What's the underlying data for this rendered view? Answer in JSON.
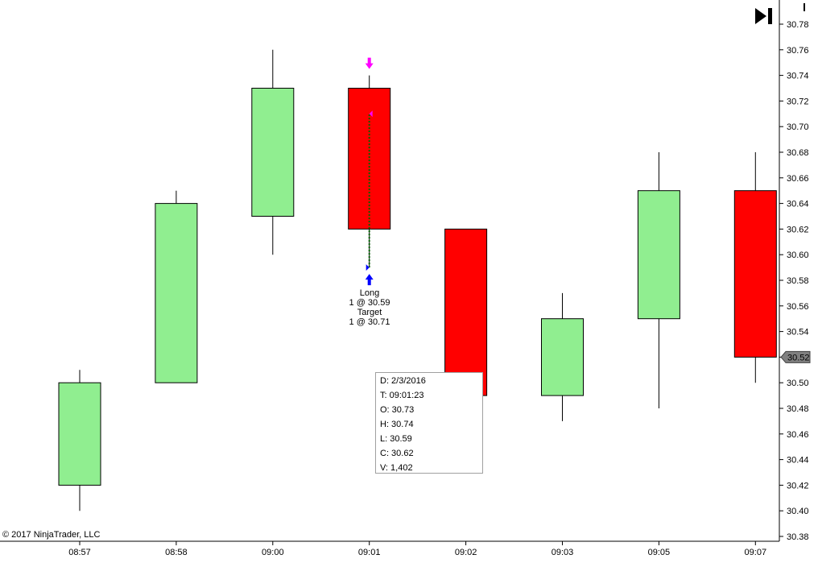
{
  "copyright": "© 2017 NinjaTrader, LLC",
  "current_price_label": "30.52",
  "icons": {
    "scroll_end": "skip-to-end-icon"
  },
  "colors": {
    "up_candle": "#90EE90",
    "down_candle": "#FF0000",
    "entry_arrow": "#0000FF",
    "exit_arrow": "#FF00FF",
    "trade_line": "#006400",
    "price_marker": "#808080"
  },
  "tooltip": {
    "date": "D: 2/3/2016",
    "time": "T: 09:01:23",
    "open": "O: 30.73",
    "high": "H: 30.74",
    "low": "L: 30.59",
    "close": "C: 30.62",
    "volume": "V: 1,402"
  },
  "annotations": {
    "entry_line1": "Long",
    "entry_line2": "1 @ 30.59",
    "exit_line1": "Target",
    "exit_line2": "1 @ 30.71"
  },
  "chart_data": {
    "type": "candlestick",
    "categories": [
      "08:57",
      "08:58",
      "09:00",
      "09:01",
      "09:02",
      "09:03",
      "09:05",
      "09:07"
    ],
    "candles": [
      {
        "time": "08:57",
        "open": 30.42,
        "high": 30.51,
        "low": 30.4,
        "close": 30.5
      },
      {
        "time": "08:58",
        "open": 30.5,
        "high": 30.65,
        "low": 30.5,
        "close": 30.64
      },
      {
        "time": "09:00",
        "open": 30.63,
        "high": 30.76,
        "low": 30.6,
        "close": 30.73
      },
      {
        "time": "09:01",
        "open": 30.73,
        "high": 30.74,
        "low": 30.59,
        "close": 30.62
      },
      {
        "time": "09:02",
        "open": 30.62,
        "high": 30.62,
        "low": 30.49,
        "close": 30.49
      },
      {
        "time": "09:03",
        "open": 30.49,
        "high": 30.57,
        "low": 30.47,
        "close": 30.55
      },
      {
        "time": "09:05",
        "open": 30.55,
        "high": 30.68,
        "low": 30.48,
        "close": 30.65
      },
      {
        "time": "09:07",
        "open": 30.65,
        "high": 30.68,
        "low": 30.5,
        "close": 30.52
      }
    ],
    "y_ticks": [
      "30.78",
      "30.76",
      "30.74",
      "30.72",
      "30.70",
      "30.68",
      "30.66",
      "30.64",
      "30.62",
      "30.60",
      "30.58",
      "30.56",
      "30.54",
      "30.52",
      "30.50",
      "30.48",
      "30.46",
      "30.44",
      "30.42",
      "30.40",
      "30.38"
    ],
    "ylim": [
      30.38,
      30.78
    ],
    "trade": {
      "bar": "09:01",
      "entry_price": 30.59,
      "exit_price": 30.71
    },
    "grid": false,
    "y_axis_position": "right"
  }
}
